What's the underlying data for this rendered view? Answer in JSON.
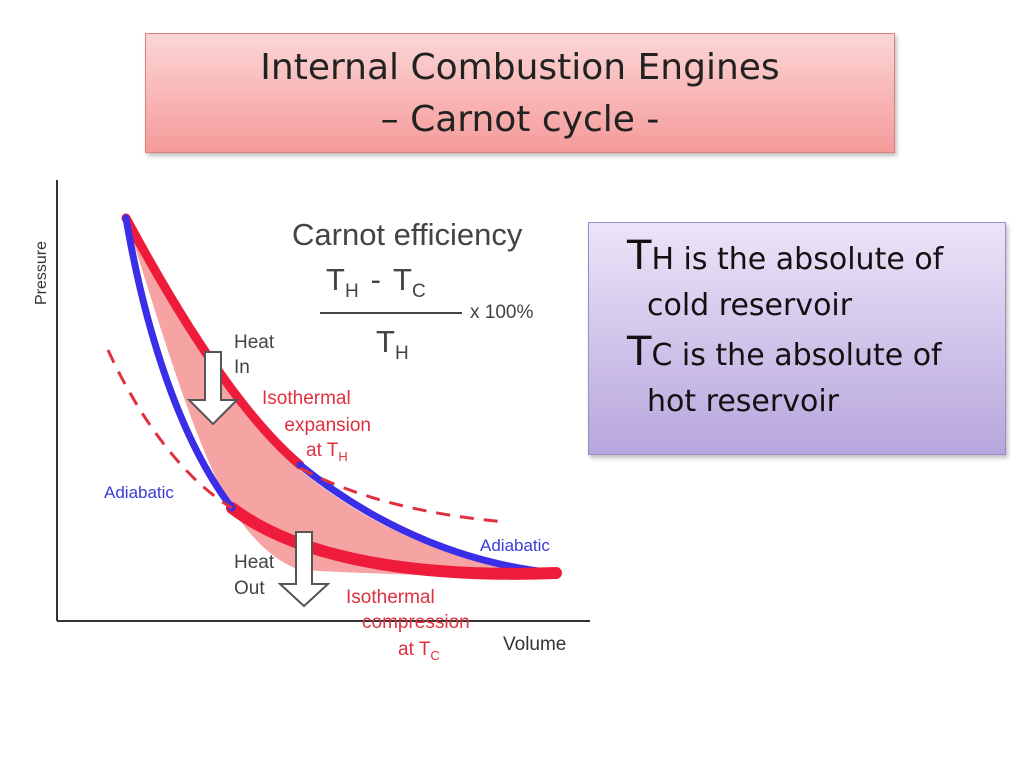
{
  "title": {
    "line1": "Internal Combustion Engines",
    "line2": "– Carnot cycle -"
  },
  "diagram": {
    "y_axis_label": "Pressure",
    "x_axis_label": "Volume",
    "efficiency_title": "Carnot efficiency",
    "formula": {
      "numerator_a": "T",
      "numerator_a_sub": "H",
      "minus": "-",
      "numerator_b": "T",
      "numerator_b_sub": "C",
      "denominator": "T",
      "denominator_sub": "H",
      "multiplier": "x 100%"
    },
    "heat_in": {
      "line1": "Heat",
      "line2": "In"
    },
    "heat_out": {
      "line1": "Heat",
      "line2": "Out"
    },
    "isothermal_expansion": {
      "line1": "Isothermal",
      "line2": "expansion",
      "line3": "at T",
      "sub": "H"
    },
    "isothermal_compression": {
      "line1": "Isothermal",
      "line2": "compression",
      "line3": "at T",
      "sub": "C"
    },
    "adiabatic_left": "Adiabatic",
    "adiabatic_right": "Adiabatic",
    "colors": {
      "isotherm": "#ee1c3a",
      "adiabat": "#3a2ee8",
      "fill": "#f6a3a3",
      "label_red": "#e0303f",
      "label_blue": "#3b3bd6"
    }
  },
  "info": {
    "line1_big": "T",
    "line1_rest": "H is the absolute of",
    "line2": "cold reservoir",
    "line3_big": "T",
    "line3_rest": "C is the absolute of",
    "line4": "hot reservoir"
  }
}
